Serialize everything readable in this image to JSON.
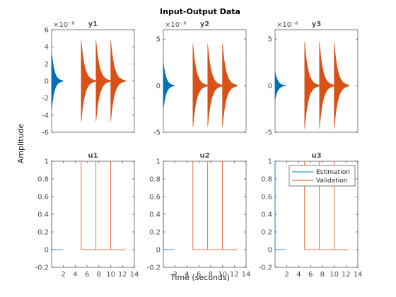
{
  "figure": {
    "title": "Input-Output Data",
    "xlabel": "Time (seconds)",
    "ylabel": "Amplitude",
    "legend": [
      "Estimation",
      "Validation"
    ],
    "legend_placement": "top-right of u3 panel"
  },
  "colors": {
    "estimation": "#0072bd",
    "validation": "#d95319",
    "axes": "#262626",
    "ticks": "#4d4d4d"
  },
  "chart_data": [
    {
      "type": "line",
      "title": "y1",
      "exponent": "×10⁻⁸",
      "xlim": [
        0,
        14
      ],
      "ylim": [
        -6e-08,
        6e-08
      ],
      "xticks": [],
      "yticks": [
        -6,
        -4,
        -2,
        0,
        2,
        4,
        6
      ],
      "series": [
        {
          "name": "Estimation",
          "kind": "decay",
          "bursts": [
            {
              "t0": 0,
              "t1": 1.9,
              "amp": 3.4e-08,
              "rate": 2.2
            }
          ]
        },
        {
          "name": "Validation",
          "kind": "decay",
          "bursts": [
            {
              "t0": 5.0,
              "t1": 7.5,
              "amp": 4.8e-08,
              "rate": 1.7
            },
            {
              "t0": 7.5,
              "t1": 10.0,
              "amp": 4.8e-08,
              "rate": 1.7
            },
            {
              "t0": 10.0,
              "t1": 12.5,
              "amp": 4.8e-08,
              "rate": 1.7
            }
          ]
        }
      ]
    },
    {
      "type": "line",
      "title": "y2",
      "exponent": "×10⁻⁸",
      "xlim": [
        0,
        14
      ],
      "ylim": [
        -5e-08,
        6e-08
      ],
      "xticks": [],
      "yticks": [
        -5,
        0,
        5
      ],
      "series": [
        {
          "name": "Estimation",
          "kind": "decay",
          "bursts": [
            {
              "t0": 0,
              "t1": 1.9,
              "amp": 2.5e-08,
              "rate": 2.2
            }
          ]
        },
        {
          "name": "Validation",
          "kind": "decay",
          "bursts": [
            {
              "t0": 5.0,
              "t1": 7.5,
              "amp": 4.5e-08,
              "rate": 1.7
            },
            {
              "t0": 7.5,
              "t1": 10.0,
              "amp": 4.5e-08,
              "rate": 1.7
            },
            {
              "t0": 10.0,
              "t1": 12.5,
              "amp": 4.5e-08,
              "rate": 1.7
            }
          ]
        }
      ]
    },
    {
      "type": "line",
      "title": "y3",
      "exponent": "×10⁻⁸",
      "xlim": [
        0,
        14
      ],
      "ylim": [
        -5e-08,
        6e-08
      ],
      "xticks": [],
      "yticks": [
        -5,
        0,
        5
      ],
      "series": [
        {
          "name": "Estimation",
          "kind": "decay",
          "bursts": [
            {
              "t0": 0,
              "t1": 1.9,
              "amp": 1.5e-08,
              "rate": 2.2
            }
          ]
        },
        {
          "name": "Validation",
          "kind": "decay",
          "bursts": [
            {
              "t0": 5.0,
              "t1": 7.5,
              "amp": 4.7e-08,
              "rate": 1.7
            },
            {
              "t0": 7.5,
              "t1": 10.0,
              "amp": 4.7e-08,
              "rate": 1.7
            },
            {
              "t0": 10.0,
              "t1": 12.5,
              "amp": 4.7e-08,
              "rate": 1.7
            }
          ]
        }
      ]
    },
    {
      "type": "line",
      "title": "u1",
      "exponent": "",
      "xlim": [
        0,
        14
      ],
      "ylim": [
        -0.2,
        1
      ],
      "xticks": [
        2,
        4,
        6,
        8,
        10,
        12,
        14
      ],
      "yticks": [
        -0.2,
        0,
        0.2,
        0.4,
        0.6,
        0.8,
        1
      ],
      "series": [
        {
          "name": "Estimation",
          "kind": "pulse",
          "points": [
            [
              0,
              1
            ],
            [
              0,
              0
            ],
            [
              1.9,
              0
            ]
          ]
        },
        {
          "name": "Validation",
          "kind": "pulse",
          "points": [
            [
              5,
              0
            ],
            [
              5,
              1
            ],
            [
              5,
              0
            ],
            [
              7.5,
              0
            ],
            [
              7.5,
              1
            ],
            [
              7.5,
              0
            ],
            [
              10,
              0
            ],
            [
              10,
              1
            ],
            [
              10,
              0
            ],
            [
              12.5,
              0
            ]
          ]
        }
      ]
    },
    {
      "type": "line",
      "title": "u2",
      "exponent": "",
      "xlim": [
        0,
        14
      ],
      "ylim": [
        -0.2,
        1
      ],
      "xticks": [
        2,
        4,
        6,
        8,
        10,
        12,
        14
      ],
      "yticks": [
        -0.2,
        0,
        0.2,
        0.4,
        0.6,
        0.8,
        1
      ],
      "series": [
        {
          "name": "Estimation",
          "kind": "pulse",
          "points": [
            [
              0,
              1
            ],
            [
              0,
              0
            ],
            [
              1.9,
              0
            ]
          ]
        },
        {
          "name": "Validation",
          "kind": "pulse",
          "points": [
            [
              5,
              0
            ],
            [
              5,
              1
            ],
            [
              5,
              0
            ],
            [
              7.5,
              0
            ],
            [
              7.5,
              1
            ],
            [
              7.5,
              0
            ],
            [
              10,
              0
            ],
            [
              10,
              1
            ],
            [
              10,
              0
            ],
            [
              12.5,
              0
            ]
          ]
        }
      ]
    },
    {
      "type": "line",
      "title": "u3",
      "exponent": "",
      "xlim": [
        0,
        14
      ],
      "ylim": [
        -0.2,
        1
      ],
      "xticks": [
        2,
        4,
        6,
        8,
        10,
        12,
        14
      ],
      "yticks": [
        -0.2,
        0,
        0.2,
        0.4,
        0.6,
        0.8,
        1
      ],
      "series": [
        {
          "name": "Estimation",
          "kind": "pulse",
          "points": [
            [
              0,
              1
            ],
            [
              0,
              0
            ],
            [
              1.9,
              0
            ]
          ]
        },
        {
          "name": "Validation",
          "kind": "pulse",
          "points": [
            [
              5,
              0
            ],
            [
              5,
              1
            ],
            [
              5,
              0
            ],
            [
              7.5,
              0
            ],
            [
              7.5,
              1
            ],
            [
              7.5,
              0
            ],
            [
              10,
              0
            ],
            [
              10,
              1
            ],
            [
              10,
              0
            ],
            [
              12.5,
              0
            ]
          ]
        }
      ]
    }
  ]
}
